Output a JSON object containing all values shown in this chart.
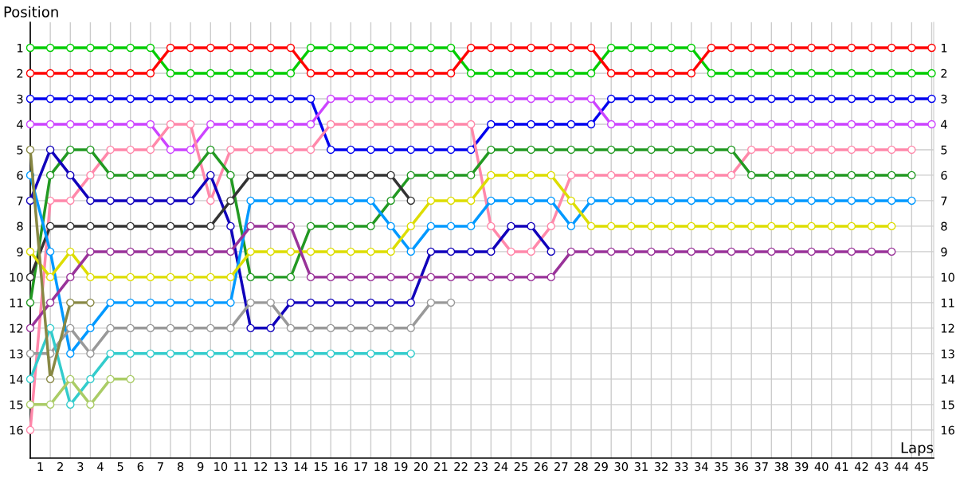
{
  "chart_data": {
    "type": "line",
    "xlabel": "Laps",
    "ylabel": "Position",
    "x": [
      0,
      1,
      2,
      3,
      4,
      5,
      6,
      7,
      8,
      9,
      10,
      11,
      12,
      13,
      14,
      15,
      16,
      17,
      18,
      19,
      20,
      21,
      22,
      23,
      24,
      25,
      26,
      27,
      28,
      29,
      30,
      31,
      32,
      33,
      34,
      35,
      36,
      37,
      38,
      39,
      40,
      41,
      42,
      43,
      44,
      45
    ],
    "xlim": [
      0,
      45.1
    ],
    "xticks": [
      {
        "value": 0.5,
        "label": "1"
      },
      {
        "value": 1.5,
        "label": "2"
      },
      {
        "value": 2.5,
        "label": "3"
      },
      {
        "value": 3.5,
        "label": "4"
      },
      {
        "value": 4.5,
        "label": "5"
      },
      {
        "value": 5.5,
        "label": "6"
      },
      {
        "value": 6.5,
        "label": "7"
      },
      {
        "value": 7.5,
        "label": "8"
      },
      {
        "value": 8.5,
        "label": "9"
      },
      {
        "value": 9.5,
        "label": "10"
      },
      {
        "value": 10.5,
        "label": "11"
      },
      {
        "value": 11.5,
        "label": "12"
      },
      {
        "value": 12.5,
        "label": "13"
      },
      {
        "value": 13.5,
        "label": "14"
      },
      {
        "value": 14.5,
        "label": "15"
      },
      {
        "value": 15.5,
        "label": "16"
      },
      {
        "value": 16.5,
        "label": "17"
      },
      {
        "value": 17.5,
        "label": "18"
      },
      {
        "value": 18.5,
        "label": "19"
      },
      {
        "value": 19.5,
        "label": "20"
      },
      {
        "value": 20.5,
        "label": "21"
      },
      {
        "value": 21.5,
        "label": "22"
      },
      {
        "value": 22.5,
        "label": "23"
      },
      {
        "value": 23.5,
        "label": "24"
      },
      {
        "value": 24.5,
        "label": "25"
      },
      {
        "value": 25.5,
        "label": "26"
      },
      {
        "value": 26.5,
        "label": "27"
      },
      {
        "value": 27.5,
        "label": "28"
      },
      {
        "value": 28.5,
        "label": "29"
      },
      {
        "value": 29.5,
        "label": "30"
      },
      {
        "value": 30.5,
        "label": "31"
      },
      {
        "value": 31.5,
        "label": "32"
      },
      {
        "value": 32.5,
        "label": "33"
      },
      {
        "value": 33.5,
        "label": "34"
      },
      {
        "value": 34.5,
        "label": "35"
      },
      {
        "value": 35.5,
        "label": "36"
      },
      {
        "value": 36.5,
        "label": "37"
      },
      {
        "value": 37.5,
        "label": "38"
      },
      {
        "value": 38.5,
        "label": "39"
      },
      {
        "value": 39.5,
        "label": "40"
      },
      {
        "value": 40.5,
        "label": "41"
      },
      {
        "value": 41.5,
        "label": "42"
      },
      {
        "value": 42.5,
        "label": "43"
      },
      {
        "value": 43.5,
        "label": "44"
      },
      {
        "value": 44.5,
        "label": "45"
      }
    ],
    "ylim": [
      17.1,
      0
    ],
    "yticks": [
      1,
      2,
      3,
      4,
      5,
      6,
      7,
      8,
      9,
      10,
      11,
      12,
      13,
      14,
      15,
      16
    ],
    "y2lim": [
      17.1,
      0
    ],
    "y2ticks": [
      1,
      2,
      3,
      4,
      5,
      6,
      7,
      8,
      9,
      10,
      11,
      12,
      13,
      14,
      15,
      16
    ],
    "grid": true,
    "marker": "circle",
    "line_style": "solid",
    "series": [
      {
        "color": "#00cc00",
        "values": [
          1,
          1,
          1,
          1,
          1,
          1,
          1,
          2,
          2,
          2,
          2,
          2,
          2,
          2,
          1,
          1,
          1,
          1,
          1,
          1,
          1,
          1,
          2,
          2,
          2,
          2,
          2,
          2,
          2,
          1,
          1,
          1,
          1,
          1,
          2,
          2,
          2,
          2,
          2,
          2,
          2,
          2,
          2,
          2,
          2,
          2
        ]
      },
      {
        "color": "#ff0000",
        "values": [
          2,
          2,
          2,
          2,
          2,
          2,
          2,
          1,
          1,
          1,
          1,
          1,
          1,
          1,
          2,
          2,
          2,
          2,
          2,
          2,
          2,
          2,
          1,
          1,
          1,
          1,
          1,
          1,
          1,
          2,
          2,
          2,
          2,
          2,
          1,
          1,
          1,
          1,
          1,
          1,
          1,
          1,
          1,
          1,
          1,
          1
        ]
      },
      {
        "color": "#0000ee",
        "values": [
          3,
          3,
          3,
          3,
          3,
          3,
          3,
          3,
          3,
          3,
          3,
          3,
          3,
          3,
          3,
          5,
          5,
          5,
          5,
          5,
          5,
          5,
          5,
          4,
          4,
          4,
          4,
          4,
          4,
          3,
          3,
          3,
          3,
          3,
          3,
          3,
          3,
          3,
          3,
          3,
          3,
          3,
          3,
          3,
          3,
          3
        ]
      },
      {
        "color": "#cc44ff",
        "values": [
          4,
          4,
          4,
          4,
          4,
          4,
          4,
          5,
          5,
          4,
          4,
          4,
          4,
          4,
          4,
          3,
          3,
          3,
          3,
          3,
          3,
          3,
          3,
          3,
          3,
          3,
          3,
          3,
          3,
          4,
          4,
          4,
          4,
          4,
          4,
          4,
          4,
          4,
          4,
          4,
          4,
          4,
          4,
          4,
          4,
          4
        ]
      },
      {
        "color": "#ff88aa",
        "values": [
          16,
          7,
          7,
          6,
          5,
          5,
          5,
          4,
          4,
          7,
          5,
          5,
          5,
          5,
          5,
          4,
          4,
          4,
          4,
          4,
          4,
          4,
          4,
          8,
          9,
          9,
          8,
          6,
          6,
          6,
          6,
          6,
          6,
          6,
          6,
          6,
          5,
          5,
          5,
          5,
          5,
          5,
          5,
          5,
          5,
          null
        ]
      },
      {
        "color": "#229922",
        "values": [
          11,
          6,
          5,
          5,
          6,
          6,
          6,
          6,
          6,
          5,
          6,
          10,
          10,
          10,
          8,
          8,
          8,
          8,
          7,
          6,
          6,
          6,
          6,
          5,
          5,
          5,
          5,
          5,
          5,
          5,
          5,
          5,
          5,
          5,
          5,
          5,
          6,
          6,
          6,
          6,
          6,
          6,
          6,
          6,
          6,
          null
        ]
      },
      {
        "color": "#1100bb",
        "values": [
          7,
          5,
          6,
          7,
          7,
          7,
          7,
          7,
          7,
          6,
          8,
          12,
          12,
          11,
          11,
          11,
          11,
          11,
          11,
          11,
          9,
          9,
          9,
          9,
          8,
          8,
          9,
          null,
          null,
          null,
          null,
          null,
          null,
          null,
          null,
          null,
          null,
          null,
          null,
          null,
          null,
          null,
          null,
          null,
          null,
          null
        ]
      },
      {
        "color": "#333333",
        "values": [
          10,
          8,
          8,
          8,
          8,
          8,
          8,
          8,
          8,
          8,
          7,
          6,
          6,
          6,
          6,
          6,
          6,
          6,
          6,
          7,
          null,
          null,
          null,
          null,
          null,
          null,
          null,
          null,
          null,
          null,
          null,
          null,
          null,
          null,
          null,
          null,
          null,
          null,
          null,
          null,
          null,
          null,
          null,
          null,
          null,
          null
        ]
      },
      {
        "color": "#0099ff",
        "values": [
          6,
          9,
          13,
          12,
          11,
          11,
          11,
          11,
          11,
          11,
          11,
          7,
          7,
          7,
          7,
          7,
          7,
          7,
          8,
          9,
          8,
          8,
          8,
          7,
          7,
          7,
          7,
          8,
          7,
          7,
          7,
          7,
          7,
          7,
          7,
          7,
          7,
          7,
          7,
          7,
          7,
          7,
          7,
          7,
          7,
          null
        ]
      },
      {
        "color": "#dddd00",
        "values": [
          9,
          10,
          9,
          10,
          10,
          10,
          10,
          10,
          10,
          10,
          10,
          9,
          9,
          9,
          9,
          9,
          9,
          9,
          9,
          8,
          7,
          7,
          7,
          6,
          6,
          6,
          6,
          7,
          8,
          8,
          8,
          8,
          8,
          8,
          8,
          8,
          8,
          8,
          8,
          8,
          8,
          8,
          8,
          8,
          null,
          null
        ]
      },
      {
        "color": "#993399",
        "values": [
          12,
          11,
          10,
          9,
          9,
          9,
          9,
          9,
          9,
          9,
          9,
          8,
          8,
          8,
          10,
          10,
          10,
          10,
          10,
          10,
          10,
          10,
          10,
          10,
          10,
          10,
          10,
          9,
          9,
          9,
          9,
          9,
          9,
          9,
          9,
          9,
          9,
          9,
          9,
          9,
          9,
          9,
          9,
          9,
          null,
          null
        ]
      },
      {
        "color": "#999999",
        "values": [
          13,
          13,
          12,
          13,
          12,
          12,
          12,
          12,
          12,
          12,
          12,
          11,
          11,
          12,
          12,
          12,
          12,
          12,
          12,
          12,
          11,
          11,
          null,
          null,
          null,
          null,
          null,
          null,
          null,
          null,
          null,
          null,
          null,
          null,
          null,
          null,
          null,
          null,
          null,
          null,
          null,
          null,
          null,
          null,
          null,
          null
        ]
      },
      {
        "color": "#33cccc",
        "values": [
          14,
          12,
          15,
          14,
          13,
          13,
          13,
          13,
          13,
          13,
          13,
          13,
          13,
          13,
          13,
          13,
          13,
          13,
          13,
          13,
          null,
          null,
          null,
          null,
          null,
          null,
          null,
          null,
          null,
          null,
          null,
          null,
          null,
          null,
          null,
          null,
          null,
          null,
          null,
          null,
          null,
          null,
          null,
          null,
          null,
          null
        ]
      },
      {
        "color": "#888844",
        "values": [
          5,
          14,
          11,
          11,
          null,
          null,
          null,
          null,
          null,
          null,
          null,
          null,
          null,
          null,
          null,
          null,
          null,
          null,
          null,
          null,
          null,
          null,
          null,
          null,
          null,
          null,
          null,
          null,
          null,
          null,
          null,
          null,
          null,
          null,
          null,
          null,
          null,
          null,
          null,
          null,
          null,
          null,
          null,
          null,
          null,
          null
        ]
      },
      {
        "color": "#aacc66",
        "values": [
          15,
          15,
          14,
          15,
          14,
          14,
          null,
          null,
          null,
          null,
          null,
          null,
          null,
          null,
          null,
          null,
          null,
          null,
          null,
          null,
          null,
          null,
          null,
          null,
          null,
          null,
          null,
          null,
          null,
          null,
          null,
          null,
          null,
          null,
          null,
          null,
          null,
          null,
          null,
          null,
          null,
          null,
          null,
          null,
          null,
          null
        ]
      }
    ]
  }
}
